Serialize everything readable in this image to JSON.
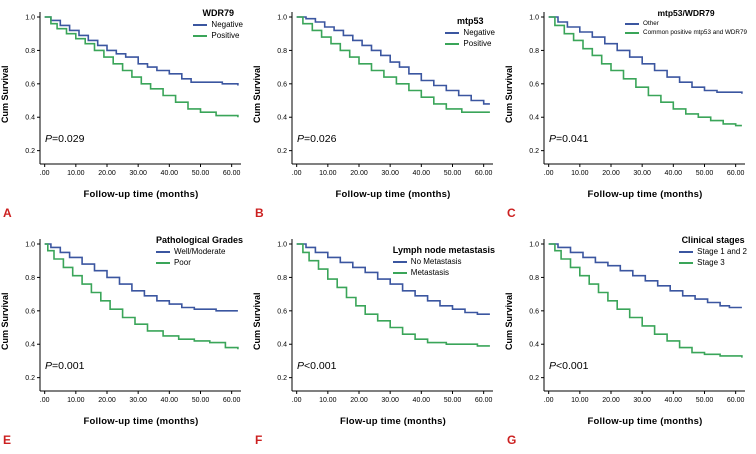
{
  "figure": {
    "colors": {
      "blue": "#3b56a0",
      "green": "#3aa559",
      "letter": "#cc2020",
      "axis": "#000000"
    }
  },
  "chart_data": [
    {
      "type": "line",
      "panel_letter": "A",
      "title": "WDR79",
      "xlabel": "Follow-up time (months)",
      "ylabel": "Cum Survival",
      "p_value": "P=0.029",
      "xlim": [
        -1.5,
        63
      ],
      "ylim": [
        0.12,
        1.03
      ],
      "x_ticks": [
        0,
        10,
        20,
        30,
        40,
        50,
        60
      ],
      "x_tick_labels": [
        ".00",
        "10.00",
        "20.00",
        "30.00",
        "40.00",
        "50.00",
        "60.00"
      ],
      "y_ticks": [
        0.2,
        0.4,
        0.6,
        0.8,
        1.0
      ],
      "y_tick_labels": [
        "0.2",
        "0.4",
        "0.6",
        "0.8",
        "1.0"
      ],
      "legend_position": "top-right",
      "legend_top": 8,
      "legend_small": false,
      "series": [
        {
          "name": "Negative",
          "color": "#3b56a0",
          "x": [
            0,
            2,
            5,
            8,
            11,
            14,
            17,
            20,
            23,
            26,
            30,
            33,
            36,
            40,
            44,
            47,
            57,
            62
          ],
          "y": [
            1.0,
            0.98,
            0.95,
            0.92,
            0.89,
            0.86,
            0.83,
            0.8,
            0.78,
            0.76,
            0.72,
            0.7,
            0.68,
            0.66,
            0.63,
            0.61,
            0.6,
            0.59
          ]
        },
        {
          "name": "Positive",
          "color": "#3aa559",
          "x": [
            0,
            2,
            4,
            7,
            10,
            13,
            16,
            19,
            22,
            25,
            28,
            31,
            34,
            38,
            42,
            46,
            50,
            55,
            62
          ],
          "y": [
            1.0,
            0.96,
            0.93,
            0.9,
            0.87,
            0.84,
            0.8,
            0.76,
            0.72,
            0.68,
            0.64,
            0.6,
            0.57,
            0.53,
            0.49,
            0.45,
            0.43,
            0.41,
            0.4
          ]
        }
      ]
    },
    {
      "type": "line",
      "panel_letter": "B",
      "title": "mtp53",
      "xlabel": "Follow-up time (months)",
      "ylabel": "Cum Survival",
      "p_value": "P=0.026",
      "xlim": [
        -1.5,
        63
      ],
      "ylim": [
        0.12,
        1.03
      ],
      "x_ticks": [
        0,
        10,
        20,
        30,
        40,
        50,
        60
      ],
      "x_tick_labels": [
        ".00",
        "10.00",
        "20.00",
        "30.00",
        "40.00",
        "50.00",
        "60.00"
      ],
      "y_ticks": [
        0.2,
        0.4,
        0.6,
        0.8,
        1.0
      ],
      "y_tick_labels": [
        "0.2",
        "0.4",
        "0.6",
        "0.8",
        "1.0"
      ],
      "legend_position": "top-right",
      "legend_top": 16,
      "legend_small": false,
      "series": [
        {
          "name": "Negative",
          "color": "#3b56a0",
          "x": [
            0,
            3,
            6,
            9,
            12,
            15,
            18,
            21,
            24,
            27,
            30,
            33,
            36,
            40,
            44,
            48,
            52,
            56,
            60,
            62
          ],
          "y": [
            1.0,
            0.99,
            0.97,
            0.94,
            0.92,
            0.89,
            0.86,
            0.83,
            0.8,
            0.77,
            0.73,
            0.7,
            0.66,
            0.62,
            0.59,
            0.56,
            0.53,
            0.5,
            0.48,
            0.48
          ]
        },
        {
          "name": "Positive",
          "color": "#3aa559",
          "x": [
            0,
            2,
            5,
            8,
            11,
            14,
            17,
            20,
            24,
            28,
            32,
            36,
            40,
            44,
            48,
            53,
            62
          ],
          "y": [
            1.0,
            0.96,
            0.92,
            0.88,
            0.84,
            0.8,
            0.76,
            0.72,
            0.68,
            0.64,
            0.6,
            0.56,
            0.52,
            0.48,
            0.45,
            0.43,
            0.43
          ]
        }
      ]
    },
    {
      "type": "line",
      "panel_letter": "C",
      "title": "mtp53/WDR79",
      "xlabel": "Follow-up time (months)",
      "ylabel": "Cum Survival",
      "p_value": "P=0.041",
      "xlim": [
        -1.5,
        63
      ],
      "ylim": [
        0.12,
        1.03
      ],
      "x_ticks": [
        0,
        10,
        20,
        30,
        40,
        50,
        60
      ],
      "x_tick_labels": [
        ".00",
        "10.00",
        "20.00",
        "30.00",
        "40.00",
        "50.00",
        "60.00"
      ],
      "y_ticks": [
        0.2,
        0.4,
        0.6,
        0.8,
        1.0
      ],
      "y_tick_labels": [
        "0.2",
        "0.4",
        "0.6",
        "0.8",
        "1.0"
      ],
      "legend_position": "top-right",
      "legend_top": 8,
      "legend_small": true,
      "series": [
        {
          "name": "Other",
          "color": "#3b56a0",
          "x": [
            0,
            3,
            6,
            10,
            14,
            18,
            22,
            26,
            30,
            34,
            38,
            42,
            46,
            50,
            54,
            62
          ],
          "y": [
            1.0,
            0.97,
            0.94,
            0.91,
            0.88,
            0.84,
            0.8,
            0.76,
            0.72,
            0.68,
            0.64,
            0.61,
            0.58,
            0.56,
            0.55,
            0.54
          ]
        },
        {
          "name": "Common positive mtp53 and WDR79",
          "color": "#3aa559",
          "x": [
            0,
            2,
            5,
            8,
            11,
            14,
            17,
            20,
            24,
            28,
            32,
            36,
            40,
            44,
            48,
            52,
            56,
            60,
            62
          ],
          "y": [
            1.0,
            0.95,
            0.9,
            0.86,
            0.81,
            0.77,
            0.72,
            0.68,
            0.63,
            0.58,
            0.53,
            0.49,
            0.45,
            0.42,
            0.4,
            0.38,
            0.36,
            0.35,
            0.35
          ]
        }
      ]
    },
    {
      "type": "line",
      "panel_letter": "E",
      "title": "Pathological Grades",
      "xlabel": "Follow-up time (months)",
      "ylabel": "Cum Survival",
      "p_value": "P=0.001",
      "xlim": [
        -1.5,
        63
      ],
      "ylim": [
        0.12,
        1.03
      ],
      "x_ticks": [
        0,
        10,
        20,
        30,
        40,
        50,
        60
      ],
      "x_tick_labels": [
        ".00",
        "10.00",
        "20.00",
        "30.00",
        "40.00",
        "50.00",
        "60.00"
      ],
      "y_ticks": [
        0.2,
        0.4,
        0.6,
        0.8,
        1.0
      ],
      "y_tick_labels": [
        "0.2",
        "0.4",
        "0.6",
        "0.8",
        "1.0"
      ],
      "legend_position": "top-right",
      "legend_top": 8,
      "legend_small": false,
      "series": [
        {
          "name": "Well/Moderate",
          "color": "#3b56a0",
          "x": [
            0,
            2,
            5,
            8,
            12,
            16,
            20,
            24,
            28,
            32,
            36,
            40,
            44,
            48,
            55,
            62
          ],
          "y": [
            1.0,
            0.98,
            0.95,
            0.92,
            0.88,
            0.84,
            0.8,
            0.76,
            0.72,
            0.69,
            0.66,
            0.64,
            0.62,
            0.61,
            0.6,
            0.6
          ]
        },
        {
          "name": "Poor",
          "color": "#3aa559",
          "x": [
            0,
            1,
            3,
            6,
            9,
            12,
            15,
            18,
            21,
            25,
            29,
            33,
            38,
            43,
            48,
            53,
            58,
            62
          ],
          "y": [
            1.0,
            0.96,
            0.91,
            0.86,
            0.81,
            0.76,
            0.71,
            0.66,
            0.61,
            0.56,
            0.52,
            0.48,
            0.45,
            0.43,
            0.42,
            0.41,
            0.38,
            0.37
          ]
        }
      ]
    },
    {
      "type": "line",
      "panel_letter": "F",
      "title": "Lymph node metastasis",
      "xlabel": "Flow-up time (months)",
      "ylabel": "Cum Survival",
      "p_value": "P<0.001",
      "xlim": [
        -1.5,
        63
      ],
      "ylim": [
        0.12,
        1.03
      ],
      "x_ticks": [
        0,
        10,
        20,
        30,
        40,
        50,
        60
      ],
      "x_tick_labels": [
        ".00",
        "10.00",
        "20.00",
        "30.00",
        "40.00",
        "50.00",
        "60.00"
      ],
      "y_ticks": [
        0.2,
        0.4,
        0.6,
        0.8,
        1.0
      ],
      "y_tick_labels": [
        "0.2",
        "0.4",
        "0.6",
        "0.8",
        "1.0"
      ],
      "legend_position": "top-right",
      "legend_top": 18,
      "legend_small": false,
      "series": [
        {
          "name": "No Metastasis",
          "color": "#3b56a0",
          "x": [
            0,
            3,
            6,
            10,
            14,
            18,
            22,
            26,
            30,
            34,
            38,
            42,
            46,
            50,
            54,
            58,
            62
          ],
          "y": [
            1.0,
            0.98,
            0.95,
            0.92,
            0.89,
            0.86,
            0.83,
            0.79,
            0.76,
            0.72,
            0.69,
            0.66,
            0.63,
            0.61,
            0.59,
            0.58,
            0.58
          ]
        },
        {
          "name": "Metastasis",
          "color": "#3aa559",
          "x": [
            0,
            2,
            4,
            7,
            10,
            13,
            16,
            19,
            22,
            26,
            30,
            34,
            38,
            42,
            48,
            55,
            58,
            62
          ],
          "y": [
            1.0,
            0.95,
            0.9,
            0.85,
            0.79,
            0.74,
            0.68,
            0.63,
            0.58,
            0.54,
            0.5,
            0.46,
            0.43,
            0.41,
            0.4,
            0.4,
            0.39,
            0.39
          ]
        }
      ]
    },
    {
      "type": "line",
      "panel_letter": "G",
      "title": "Clinical stages",
      "xlabel": "Follow-up time (months)",
      "ylabel": "Cum Survival",
      "p_value": "P<0.001",
      "xlim": [
        -1.5,
        63
      ],
      "ylim": [
        0.12,
        1.03
      ],
      "x_ticks": [
        0,
        10,
        20,
        30,
        40,
        50,
        60
      ],
      "x_tick_labels": [
        ".00",
        "10.00",
        "20.00",
        "30.00",
        "40.00",
        "50.00",
        "60.00"
      ],
      "y_ticks": [
        0.2,
        0.4,
        0.6,
        0.8,
        1.0
      ],
      "y_tick_labels": [
        "0.2",
        "0.4",
        "0.6",
        "0.8",
        "1.0"
      ],
      "legend_position": "top-right",
      "legend_top": 8,
      "legend_small": false,
      "series": [
        {
          "name": "Stage 1 and 2",
          "color": "#3b56a0",
          "x": [
            0,
            3,
            7,
            11,
            15,
            19,
            23,
            27,
            31,
            35,
            39,
            43,
            47,
            51,
            55,
            58,
            62
          ],
          "y": [
            1.0,
            0.98,
            0.95,
            0.92,
            0.89,
            0.87,
            0.84,
            0.81,
            0.78,
            0.75,
            0.72,
            0.69,
            0.67,
            0.65,
            0.63,
            0.62,
            0.62
          ]
        },
        {
          "name": "Stage 3",
          "color": "#3aa559",
          "x": [
            0,
            2,
            4,
            7,
            10,
            13,
            16,
            19,
            22,
            26,
            30,
            34,
            38,
            42,
            46,
            50,
            55,
            62
          ],
          "y": [
            1.0,
            0.96,
            0.91,
            0.86,
            0.81,
            0.76,
            0.71,
            0.66,
            0.61,
            0.56,
            0.51,
            0.46,
            0.42,
            0.38,
            0.35,
            0.34,
            0.33,
            0.32
          ]
        }
      ]
    }
  ]
}
